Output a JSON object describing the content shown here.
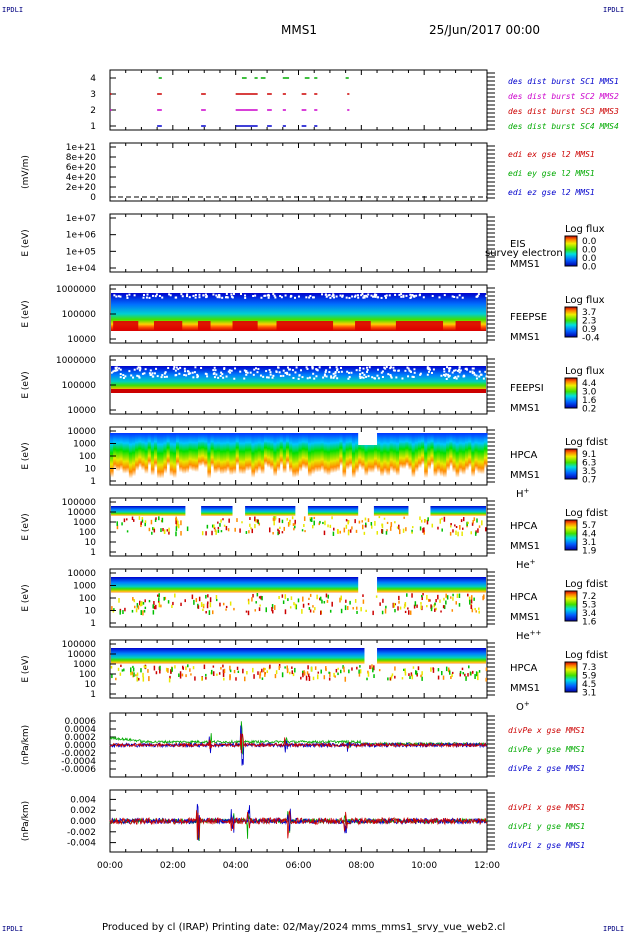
{
  "corner_marks": [
    "IPDLI",
    "IPDLI",
    "IPDLI",
    "IPDLI"
  ],
  "header": {
    "spacecraft": "MMS1",
    "date": "25/Jun/2017 00:00"
  },
  "footer": {
    "text": "Produced by cl (IRAP)   Printing date: 02/May/2024   mms_mms1_srvy_vue_web2.cl"
  },
  "time_axis": {
    "labels": [
      "00:00",
      "02:00",
      "04:00",
      "06:00",
      "08:00",
      "10:00",
      "12:00"
    ],
    "range_hours": [
      0,
      12
    ]
  },
  "colors": {
    "blue": "#0000cc",
    "red": "#cc0000",
    "magenta": "#cc00cc",
    "green": "#00aa00"
  },
  "chart_data": [
    {
      "type": "scatter",
      "panel": "burst",
      "yticks": [
        "4",
        "3",
        "2",
        "1"
      ],
      "legend": [
        {
          "label": "des dist burst SC1 MMS1",
          "color": "#0000cc"
        },
        {
          "label": "des dist burst SC2 MMS2",
          "color": "#cc00cc"
        },
        {
          "label": "des dist burst SC3 MMS3",
          "color": "#cc0000"
        },
        {
          "label": "des dist burst SC4 MMS4",
          "color": "#00aa00"
        }
      ],
      "series": [
        {
          "level": 4,
          "color": "#00aa00",
          "segments": [
            [
              1.55,
              1.65
            ],
            [
              4.2,
              4.35
            ],
            [
              4.6,
              4.7
            ],
            [
              4.8,
              4.95
            ],
            [
              5.5,
              5.7
            ],
            [
              6.2,
              6.35
            ],
            [
              6.5,
              6.6
            ],
            [
              7.5,
              7.6
            ]
          ]
        },
        {
          "level": 3,
          "color": "#cc0000",
          "segments": [
            [
              0,
              0.05
            ],
            [
              1.5,
              1.65
            ],
            [
              2.9,
              3.05
            ],
            [
              4.0,
              4.7
            ],
            [
              5.0,
              5.15
            ],
            [
              5.5,
              5.6
            ],
            [
              6.1,
              6.25
            ],
            [
              6.5,
              6.6
            ],
            [
              7.55,
              7.62
            ]
          ]
        },
        {
          "level": 2,
          "color": "#cc00cc",
          "segments": [
            [
              0,
              0.05
            ],
            [
              1.5,
              1.65
            ],
            [
              2.9,
              3.05
            ],
            [
              4.0,
              4.7
            ],
            [
              5.0,
              5.15
            ],
            [
              5.5,
              5.6
            ],
            [
              6.1,
              6.25
            ],
            [
              6.5,
              6.6
            ],
            [
              7.55,
              7.62
            ]
          ]
        },
        {
          "level": 1,
          "color": "#0000cc",
          "segments": [
            [
              1.5,
              1.65
            ],
            [
              2.9,
              3.05
            ],
            [
              4.0,
              4.7
            ],
            [
              5.0,
              5.15
            ],
            [
              5.5,
              5.6
            ],
            [
              6.1,
              6.25
            ],
            [
              6.5,
              6.6
            ]
          ]
        }
      ]
    },
    {
      "type": "line",
      "panel": "edi",
      "ylabel": "(mV/m)",
      "yticks": [
        "1e+21",
        "8e+20",
        "6e+20",
        "4e+20",
        "2e+20",
        "0"
      ],
      "legend": [
        {
          "label": "edi ex gse l2 MMS1",
          "color": "#cc0000"
        },
        {
          "label": "edi ey gse l2 MMS1",
          "color": "#00aa00"
        },
        {
          "label": "edi ez gse l2 MMS1",
          "color": "#0000cc"
        }
      ]
    },
    {
      "type": "heatmap",
      "panel": "eis",
      "ylabel": "E (eV)",
      "yticks": [
        "1e+07",
        "1e+06",
        "1e+05",
        "1e+04"
      ],
      "label_top": "EIS",
      "overlay_text": "survey electron to",
      "label_bottom": "MMS1",
      "colorbar_title": "Log flux",
      "colorbar_ticks": [
        "0.0",
        "0.0",
        "0.0",
        "0.0"
      ]
    },
    {
      "type": "heatmap",
      "panel": "feeps_e",
      "ylabel": "E (eV)",
      "yticks": [
        "1000000",
        "100000",
        "10000"
      ],
      "label_top": "FEEPSE",
      "label_bottom": "MMS1",
      "colorbar_title": "Log flux",
      "colorbar_ticks": [
        "3.7",
        "2.3",
        "0.9",
        "-0.4"
      ]
    },
    {
      "type": "heatmap",
      "panel": "feeps_i",
      "ylabel": "E (eV)",
      "yticks": [
        "1000000",
        "100000",
        "10000"
      ],
      "label_top": "FEEPSI",
      "label_bottom": "MMS1",
      "colorbar_title": "Log flux",
      "colorbar_ticks": [
        "4.4",
        "3.0",
        "1.6",
        "0.2"
      ]
    },
    {
      "type": "heatmap",
      "panel": "hpca_h",
      "ylabel": "E (eV)",
      "yticks": [
        "10000",
        "1000",
        "100",
        "10",
        "1"
      ],
      "label_top": "HPCA",
      "label_bottom": "MMS1",
      "species": "H",
      "species_sup": "+",
      "colorbar_title": "Log fdist",
      "colorbar_ticks": [
        "9.1",
        "6.3",
        "3.5",
        "0.7"
      ]
    },
    {
      "type": "heatmap",
      "panel": "hpca_he",
      "ylabel": "E (eV)",
      "yticks": [
        "100000",
        "10000",
        "1000",
        "100",
        "10",
        "1"
      ],
      "label_top": "HPCA",
      "label_bottom": "MMS1",
      "species": "He",
      "species_sup": "+",
      "colorbar_title": "Log fdist",
      "colorbar_ticks": [
        "5.7",
        "4.4",
        "3.1",
        "1.9"
      ]
    },
    {
      "type": "heatmap",
      "panel": "hpca_hepp",
      "ylabel": "E (eV)",
      "yticks": [
        "10000",
        "1000",
        "100",
        "10",
        "1"
      ],
      "label_top": "HPCA",
      "label_bottom": "MMS1",
      "species": "He",
      "species_sup": "++",
      "colorbar_title": "Log fdist",
      "colorbar_ticks": [
        "7.2",
        "5.3",
        "3.4",
        "1.6"
      ]
    },
    {
      "type": "heatmap",
      "panel": "hpca_o",
      "ylabel": "E (eV)",
      "yticks": [
        "100000",
        "10000",
        "1000",
        "100",
        "10",
        "1"
      ],
      "label_top": "HPCA",
      "label_bottom": "MMS1",
      "species": "O",
      "species_sup": "+",
      "colorbar_title": "Log fdist",
      "colorbar_ticks": [
        "7.3",
        "5.9",
        "4.5",
        "3.1"
      ]
    },
    {
      "type": "line",
      "panel": "divpe",
      "ylabel": "(nPa/km)",
      "yticks": [
        "0.0006",
        "0.0004",
        "0.0002",
        "0.0000",
        "-0.0002",
        "-0.0004",
        "-0.0006"
      ],
      "ylim": [
        -0.0007,
        0.0007
      ],
      "legend": [
        {
          "label": "divPe x gse MMS1",
          "color": "#cc0000"
        },
        {
          "label": "divPe y gse MMS1",
          "color": "#00aa00"
        },
        {
          "label": "divPe z gse MMS1",
          "color": "#0000cc"
        }
      ]
    },
    {
      "type": "line",
      "panel": "divpi",
      "ylabel": "(nPa/km)",
      "yticks": [
        "0.004",
        "0.002",
        "0.000",
        "-0.002",
        "-0.004"
      ],
      "ylim": [
        -0.005,
        0.005
      ],
      "legend": [
        {
          "label": "divPi x gse MMS1",
          "color": "#cc0000"
        },
        {
          "label": "divPi y gse MMS1",
          "color": "#00aa00"
        },
        {
          "label": "divPi z gse MMS1",
          "color": "#0000cc"
        }
      ]
    }
  ]
}
